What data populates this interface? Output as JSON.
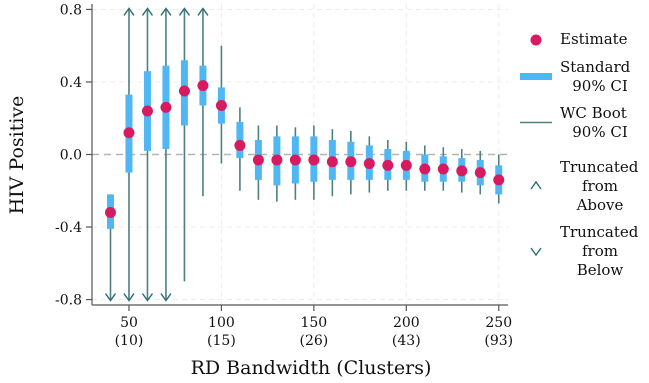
{
  "chart_data": {
    "type": "scatter",
    "xlabel": "RD Bandwidth (Clusters)",
    "ylabel": "HIV Positive",
    "xlim": [
      30,
      255
    ],
    "ylim": [
      -0.83,
      0.83
    ],
    "y_ticks": [
      {
        "value": 0.8,
        "label": "0.8"
      },
      {
        "value": 0.4,
        "label": "0.4"
      },
      {
        "value": 0.0,
        "label": "0.0"
      },
      {
        "value": -0.4,
        "label": "-0.4"
      },
      {
        "value": -0.8,
        "label": "-0.8"
      }
    ],
    "x_ticks": [
      {
        "value": 50,
        "label": "50",
        "sublabel": "(10)"
      },
      {
        "value": 100,
        "label": "100",
        "sublabel": "(15)"
      },
      {
        "value": 150,
        "label": "150",
        "sublabel": "(26)"
      },
      {
        "value": 200,
        "label": "200",
        "sublabel": "(43)"
      },
      {
        "value": 250,
        "label": "250",
        "sublabel": "(93)"
      }
    ],
    "reference_line_y": 0.0,
    "grid": true,
    "legend_position": "right",
    "legend": [
      {
        "key": "estimate",
        "label_lines": [
          "Estimate"
        ]
      },
      {
        "key": "standard",
        "label_lines": [
          "Standard",
          "90% CI"
        ]
      },
      {
        "key": "wcboot",
        "label_lines": [
          "WC Boot",
          "90% CI"
        ]
      },
      {
        "key": "trunc_above",
        "label_lines": [
          "Truncated",
          "from",
          "Above"
        ]
      },
      {
        "key": "trunc_below",
        "label_lines": [
          "Truncated",
          "from",
          "Below"
        ]
      }
    ],
    "series": [
      {
        "x": 40,
        "estimate": -0.32,
        "std_ci": [
          -0.41,
          -0.22
        ],
        "boot_ci": [
          -0.8,
          -0.22
        ],
        "trunc_above": false,
        "trunc_below": true
      },
      {
        "x": 50,
        "estimate": 0.12,
        "std_ci": [
          -0.1,
          0.33
        ],
        "boot_ci": [
          -0.8,
          0.8
        ],
        "trunc_above": true,
        "trunc_below": true
      },
      {
        "x": 60,
        "estimate": 0.24,
        "std_ci": [
          0.02,
          0.46
        ],
        "boot_ci": [
          -0.8,
          0.8
        ],
        "trunc_above": true,
        "trunc_below": true
      },
      {
        "x": 70,
        "estimate": 0.26,
        "std_ci": [
          0.03,
          0.49
        ],
        "boot_ci": [
          -0.8,
          0.8
        ],
        "trunc_above": true,
        "trunc_below": true
      },
      {
        "x": 80,
        "estimate": 0.35,
        "std_ci": [
          0.16,
          0.52
        ],
        "boot_ci": [
          -0.7,
          0.8
        ],
        "trunc_above": true,
        "trunc_below": false
      },
      {
        "x": 90,
        "estimate": 0.38,
        "std_ci": [
          0.27,
          0.49
        ],
        "boot_ci": [
          -0.23,
          0.8
        ],
        "trunc_above": true,
        "trunc_below": false
      },
      {
        "x": 100,
        "estimate": 0.27,
        "std_ci": [
          0.17,
          0.37
        ],
        "boot_ci": [
          -0.05,
          0.6
        ],
        "trunc_above": false,
        "trunc_below": false
      },
      {
        "x": 110,
        "estimate": 0.05,
        "std_ci": [
          -0.02,
          0.18
        ],
        "boot_ci": [
          -0.2,
          0.26
        ],
        "trunc_above": false,
        "trunc_below": false
      },
      {
        "x": 120,
        "estimate": -0.03,
        "std_ci": [
          -0.14,
          0.08
        ],
        "boot_ci": [
          -0.25,
          0.16
        ],
        "trunc_above": false,
        "trunc_below": false
      },
      {
        "x": 130,
        "estimate": -0.03,
        "std_ci": [
          -0.17,
          0.1
        ],
        "boot_ci": [
          -0.26,
          0.16
        ],
        "trunc_above": false,
        "trunc_below": false
      },
      {
        "x": 140,
        "estimate": -0.03,
        "std_ci": [
          -0.16,
          0.1
        ],
        "boot_ci": [
          -0.25,
          0.15
        ],
        "trunc_above": false,
        "trunc_below": false
      },
      {
        "x": 150,
        "estimate": -0.03,
        "std_ci": [
          -0.15,
          0.1
        ],
        "boot_ci": [
          -0.25,
          0.16
        ],
        "trunc_above": false,
        "trunc_below": false
      },
      {
        "x": 160,
        "estimate": -0.04,
        "std_ci": [
          -0.14,
          0.08
        ],
        "boot_ci": [
          -0.23,
          0.14
        ],
        "trunc_above": false,
        "trunc_below": false
      },
      {
        "x": 170,
        "estimate": -0.04,
        "std_ci": [
          -0.14,
          0.07
        ],
        "boot_ci": [
          -0.22,
          0.13
        ],
        "trunc_above": false,
        "trunc_below": false
      },
      {
        "x": 180,
        "estimate": -0.05,
        "std_ci": [
          -0.14,
          0.05
        ],
        "boot_ci": [
          -0.21,
          0.1
        ],
        "trunc_above": false,
        "trunc_below": false
      },
      {
        "x": 190,
        "estimate": -0.06,
        "std_ci": [
          -0.14,
          0.03
        ],
        "boot_ci": [
          -0.2,
          0.08
        ],
        "trunc_above": false,
        "trunc_below": false
      },
      {
        "x": 200,
        "estimate": -0.06,
        "std_ci": [
          -0.14,
          0.02
        ],
        "boot_ci": [
          -0.2,
          0.07
        ],
        "trunc_above": false,
        "trunc_below": false
      },
      {
        "x": 210,
        "estimate": -0.08,
        "std_ci": [
          -0.15,
          0.0
        ],
        "boot_ci": [
          -0.2,
          0.05
        ],
        "trunc_above": false,
        "trunc_below": false
      },
      {
        "x": 220,
        "estimate": -0.08,
        "std_ci": [
          -0.15,
          -0.01
        ],
        "boot_ci": [
          -0.2,
          0.04
        ],
        "trunc_above": false,
        "trunc_below": false
      },
      {
        "x": 230,
        "estimate": -0.09,
        "std_ci": [
          -0.15,
          -0.02
        ],
        "boot_ci": [
          -0.21,
          0.03
        ],
        "trunc_above": false,
        "trunc_below": false
      },
      {
        "x": 240,
        "estimate": -0.1,
        "std_ci": [
          -0.17,
          -0.03
        ],
        "boot_ci": [
          -0.22,
          0.02
        ],
        "trunc_above": false,
        "trunc_below": false
      },
      {
        "x": 250,
        "estimate": -0.14,
        "std_ci": [
          -0.22,
          -0.06
        ],
        "boot_ci": [
          -0.27,
          0.0
        ],
        "trunc_above": false,
        "trunc_below": false
      }
    ]
  },
  "colors": {
    "estimate": "#d81b60",
    "standard_ci": "#4fb8f4",
    "boot_ci": "#4f7f80",
    "truncation": "#2e6f72",
    "grid": "#ececec",
    "zero_line": "#b3b3b3",
    "axis": "#555555"
  }
}
